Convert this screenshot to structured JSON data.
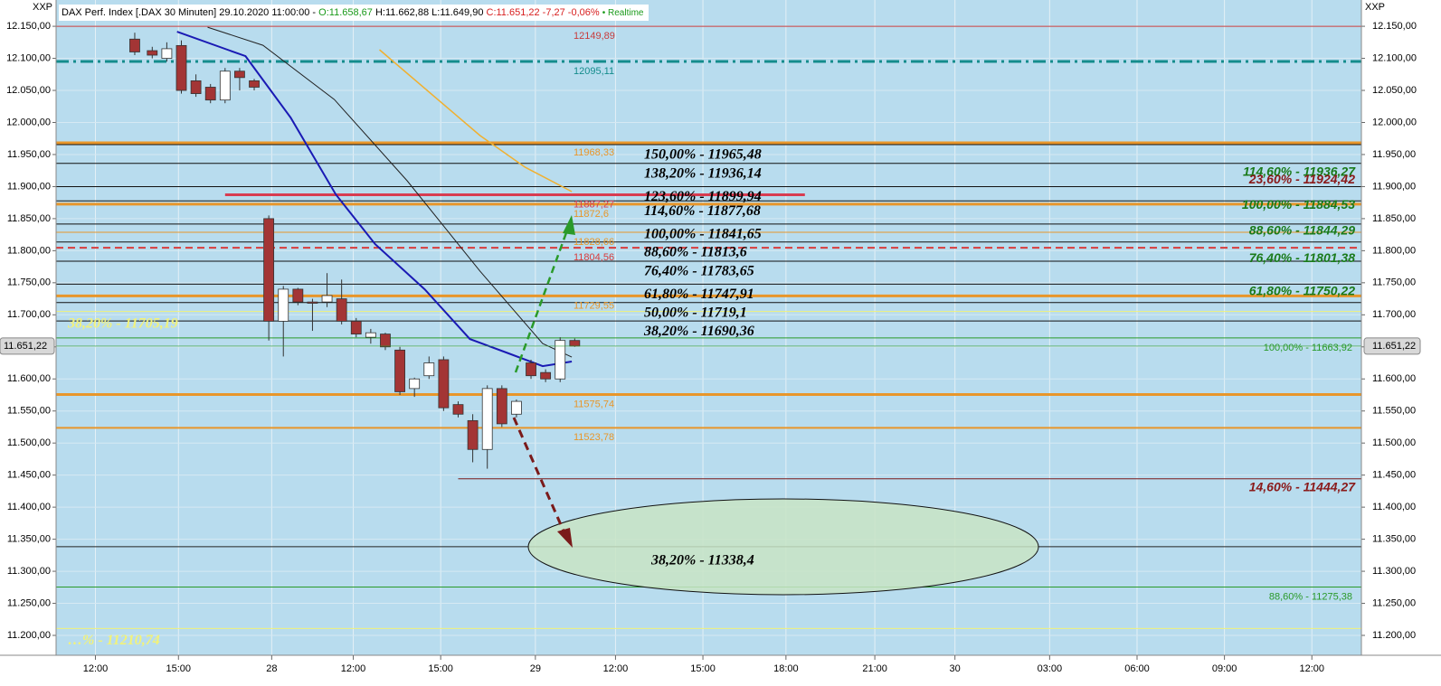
{
  "header": {
    "title": "DAX Perf. Index [.DAX 30 Minuten] 29.10.2020 11:00:00 -",
    "open": "O:11.658,67",
    "high": "H:11.662,88",
    "low": "L:11.649,90",
    "close": "C:11.651,22 -7,27 -0,06%",
    "realtime": "• Realtime"
  },
  "chart_data": {
    "type": "candlestick",
    "axis_caption": "XXP",
    "xlim": [
      -0.5,
      89.1
    ],
    "ylim": [
      11169,
      12191
    ],
    "grid": true,
    "xticks": [
      {
        "value": 2.2,
        "label": "12:00"
      },
      {
        "value": 7.9,
        "label": "15:00"
      },
      {
        "value": 14.3,
        "label": "28"
      },
      {
        "value": 19.9,
        "label": "12:00"
      },
      {
        "value": 25.9,
        "label": "15:00"
      },
      {
        "value": 32.4,
        "label": "29"
      },
      {
        "value": 37.9,
        "label": "12:00"
      },
      {
        "value": 43.9,
        "label": "15:00"
      },
      {
        "value": 49.6,
        "label": "18:00"
      },
      {
        "value": 55.7,
        "label": "21:00"
      },
      {
        "value": 61.2,
        "label": "30"
      },
      {
        "value": 67.7,
        "label": "03:00"
      },
      {
        "value": 73.7,
        "label": "06:00"
      },
      {
        "value": 79.7,
        "label": "09:00"
      },
      {
        "value": 85.7,
        "label": "12:00"
      }
    ],
    "yticks": [
      {
        "value": 12150,
        "label": "12.150,00"
      },
      {
        "value": 12100,
        "label": "12.100,00"
      },
      {
        "value": 12050,
        "label": "12.050,00"
      },
      {
        "value": 12000,
        "label": "12.000,00"
      },
      {
        "value": 11950,
        "label": "11.950,00"
      },
      {
        "value": 11900,
        "label": "11.900,00"
      },
      {
        "value": 11850,
        "label": "11.850,00"
      },
      {
        "value": 11800,
        "label": "11.800,00"
      },
      {
        "value": 11750,
        "label": "11.750,00"
      },
      {
        "value": 11700,
        "label": "11.700,00"
      },
      {
        "value": 11650,
        "label": "11.650,00"
      },
      {
        "value": 11600,
        "label": "11.600,00"
      },
      {
        "value": 11550,
        "label": "11.550,00"
      },
      {
        "value": 11500,
        "label": "11.500,00"
      },
      {
        "value": 11450,
        "label": "11.450,00"
      },
      {
        "value": 11400,
        "label": "11.400,00"
      },
      {
        "value": 11350,
        "label": "11.350,00"
      },
      {
        "value": 11300,
        "label": "11.300,00"
      },
      {
        "value": 11250,
        "label": "11.250,00"
      },
      {
        "value": 11200,
        "label": "11.200,00"
      }
    ],
    "last_price": {
      "value": 11651.22,
      "label": "11.651,22"
    },
    "candles": [
      {
        "x": 4.9,
        "open": 12130,
        "high": 12140,
        "low": 12105,
        "close": 12110
      },
      {
        "x": 6.1,
        "open": 12112,
        "high": 12118,
        "low": 12100,
        "close": 12105
      },
      {
        "x": 7.1,
        "open": 12100,
        "high": 12125,
        "low": 12095,
        "close": 12115
      },
      {
        "x": 8.1,
        "open": 12120,
        "high": 12128,
        "low": 12045,
        "close": 12050
      },
      {
        "x": 9.1,
        "open": 12065,
        "high": 12075,
        "low": 12040,
        "close": 12045
      },
      {
        "x": 10.1,
        "open": 12055,
        "high": 12060,
        "low": 12030,
        "close": 12035
      },
      {
        "x": 11.1,
        "open": 12035,
        "high": 12085,
        "low": 12030,
        "close": 12080
      },
      {
        "x": 12.1,
        "open": 12080,
        "high": 12085,
        "low": 12050,
        "close": 12070
      },
      {
        "x": 13.1,
        "open": 12065,
        "high": 12068,
        "low": 12050,
        "close": 12055
      },
      {
        "x": 14.1,
        "open": 11850,
        "high": 11855,
        "low": 11660,
        "close": 11690
      },
      {
        "x": 15.1,
        "open": 11690,
        "high": 11745,
        "low": 11635,
        "close": 11740
      },
      {
        "x": 16.1,
        "open": 11740,
        "high": 11742,
        "low": 11715,
        "close": 11720
      },
      {
        "x": 17.1,
        "open": 11720,
        "high": 11725,
        "low": 11675,
        "close": 11718
      },
      {
        "x": 18.1,
        "open": 11720,
        "high": 11765,
        "low": 11712,
        "close": 11730
      },
      {
        "x": 19.1,
        "open": 11725,
        "high": 11755,
        "low": 11685,
        "close": 11690
      },
      {
        "x": 20.1,
        "open": 11690,
        "high": 11695,
        "low": 11665,
        "close": 11670
      },
      {
        "x": 21.1,
        "open": 11665,
        "high": 11678,
        "low": 11655,
        "close": 11672
      },
      {
        "x": 22.1,
        "open": 11670,
        "high": 11672,
        "low": 11645,
        "close": 11650
      },
      {
        "x": 23.1,
        "open": 11645,
        "high": 11650,
        "low": 11575,
        "close": 11580
      },
      {
        "x": 24.1,
        "open": 11585,
        "high": 11602,
        "low": 11572,
        "close": 11600
      },
      {
        "x": 25.1,
        "open": 11605,
        "high": 11635,
        "low": 11600,
        "close": 11625
      },
      {
        "x": 26.1,
        "open": 11630,
        "high": 11635,
        "low": 11550,
        "close": 11555
      },
      {
        "x": 27.1,
        "open": 11560,
        "high": 11565,
        "low": 11540,
        "close": 11545
      },
      {
        "x": 28.1,
        "open": 11535,
        "high": 11545,
        "low": 11470,
        "close": 11490
      },
      {
        "x": 29.1,
        "open": 11490,
        "high": 11590,
        "low": 11460,
        "close": 11585
      },
      {
        "x": 30.1,
        "open": 11585,
        "high": 11590,
        "low": 11525,
        "close": 11530
      },
      {
        "x": 31.1,
        "open": 11545,
        "high": 11568,
        "low": 11540,
        "close": 11565
      },
      {
        "x": 32.1,
        "open": 11625,
        "high": 11630,
        "low": 11600,
        "close": 11605
      },
      {
        "x": 33.1,
        "open": 11610,
        "high": 11615,
        "low": 11595,
        "close": 11600
      },
      {
        "x": 34.1,
        "open": 11600,
        "high": 11665,
        "low": 11595,
        "close": 11660
      },
      {
        "x": 35.1,
        "open": 11660,
        "high": 11663,
        "low": 11650,
        "close": 11651.22
      }
    ],
    "lines": [
      {
        "color": "#1a1ab4",
        "width": 2,
        "x": [
          7.8,
          12.5,
          15.6,
          18.7,
          21.4,
          24.8,
          27.9,
          30.4,
          32.9,
          34.9
        ],
        "values": [
          12141.5,
          12103.5,
          12007.6,
          11887.8,
          11810.3,
          11739.8,
          11662.3,
          11641.2,
          11620,
          11627.1
        ]
      },
      {
        "color": "#f0b030",
        "width": 1.5,
        "x": [
          21.7,
          28.6,
          31.7,
          34.9
        ],
        "values": [
          12113.4,
          11979.5,
          11930.1,
          11892.1
        ]
      },
      {
        "color": "#222222",
        "width": 1,
        "x": [
          9.9,
          13.7,
          18.6,
          23.6,
          28.6,
          32.9,
          34.9
        ],
        "values": [
          12148.6,
          12120.4,
          12035.8,
          11909,
          11768,
          11655.2,
          11634
        ]
      }
    ],
    "price_lines": [
      {
        "value": 12149.89,
        "color": "#c83c3c",
        "width": 1,
        "label": "12149,89",
        "label_side": "mid"
      },
      {
        "value": 12095.11,
        "color": "#148c8c",
        "width": 3,
        "dash": "14 5 3 5",
        "label": "12095,11",
        "label_side": "mid"
      },
      {
        "value": 11968.33,
        "color": "#e8962a",
        "width": 3,
        "label": "11968,33",
        "label_side": "mid"
      },
      {
        "value": 11887.27,
        "color": "#d83c50",
        "width": 3,
        "span": [
          11.1,
          50.9
        ],
        "label": "11887,27",
        "label_side": "mid"
      },
      {
        "value": 11872.6,
        "color": "#e8962a",
        "width": 3,
        "label": "11872,6",
        "label_side": "mid"
      },
      {
        "value": 11828.66,
        "color": "#e8962a",
        "width": 1,
        "label": "11828,66",
        "label_side": "mid"
      },
      {
        "value": 11804.56,
        "color": "#d83c3c",
        "width": 2,
        "dash": "8 5",
        "label": "11804,56",
        "label_side": "mid"
      },
      {
        "value": 11729.55,
        "color": "#e8962a",
        "width": 3,
        "label": "11729,55",
        "label_side": "mid"
      },
      {
        "value": 11705.19,
        "color": "#f2f27a",
        "width": 1,
        "label": "38,20% - 11705,19",
        "label_side": "left"
      },
      {
        "value": 11663.92,
        "color": "#2a9a2a",
        "width": 1,
        "label": "100,00% - 11663,92",
        "label_side": "right"
      },
      {
        "value": 11575.74,
        "color": "#e8962a",
        "width": 3,
        "label": "11575,74",
        "label_side": "mid"
      },
      {
        "value": 11523.78,
        "color": "#e8962a",
        "width": 2,
        "label": "11523,78",
        "label_side": "mid"
      },
      {
        "value": 11444.27,
        "color": "#7a1a1a",
        "width": 1,
        "span": [
          27.1,
          89.1
        ]
      },
      {
        "value": 11338.4,
        "color": "#222222",
        "width": 1
      },
      {
        "value": 11275.38,
        "color": "#2a9a2a",
        "width": 1,
        "label": "88,60% - 11275,38",
        "label_side": "right"
      },
      {
        "value": 11210.74,
        "color": "#f2f27a",
        "width": 1,
        "label": "…% - 11210,74",
        "label_side": "left"
      }
    ],
    "fib_levels": [
      {
        "value": 11965.48,
        "label": "150,00% - 11965,48"
      },
      {
        "value": 11936.14,
        "label": "138,20% - 11936,14"
      },
      {
        "value": 11899.94,
        "label": "123,60% - 11899,94"
      },
      {
        "value": 11877.68,
        "label": "114,60% - 11877,68"
      },
      {
        "value": 11841.65,
        "label": "100,00% - 11841,65"
      },
      {
        "value": 11813.6,
        "label": "88,60% - 11813,6"
      },
      {
        "value": 11783.65,
        "label": "76,40% - 11783,65"
      },
      {
        "value": 11747.91,
        "label": "61,80% - 11747,91"
      },
      {
        "value": 11719.1,
        "label": "50,00% - 11719,1"
      },
      {
        "value": 11690.36,
        "label": "38,20% - 11690,36"
      }
    ],
    "right_labels": [
      {
        "value": 11936.27,
        "label": "114,60% - 11936,27",
        "color": "#1a7a1a"
      },
      {
        "value": 11924.42,
        "label": "23,60% - 11924,42",
        "color": "#8a1a1a"
      },
      {
        "value": 11884.53,
        "label": "100,00% - 11884,53",
        "color": "#1a7a1a"
      },
      {
        "value": 11844.29,
        "label": "88,60% - 11844,29",
        "color": "#1a7a1a"
      },
      {
        "value": 11801.38,
        "label": "76,40% - 11801,38",
        "color": "#1a7a1a"
      },
      {
        "value": 11750.22,
        "label": "61,80% - 11750,22",
        "color": "#1a7a1a"
      },
      {
        "value": 11444.27,
        "label": "14,60% - 11444,27",
        "color": "#8a1a1a"
      }
    ],
    "target_label": "38,20% - 11338,4"
  }
}
